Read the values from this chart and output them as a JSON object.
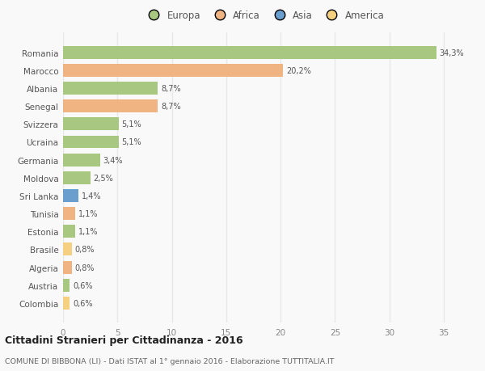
{
  "categories": [
    "Romania",
    "Marocco",
    "Albania",
    "Senegal",
    "Svizzera",
    "Ucraina",
    "Germania",
    "Moldova",
    "Sri Lanka",
    "Tunisia",
    "Estonia",
    "Brasile",
    "Algeria",
    "Austria",
    "Colombia"
  ],
  "values": [
    34.3,
    20.2,
    8.7,
    8.7,
    5.1,
    5.1,
    3.4,
    2.5,
    1.4,
    1.1,
    1.1,
    0.8,
    0.8,
    0.6,
    0.6
  ],
  "labels": [
    "34,3%",
    "20,2%",
    "8,7%",
    "8,7%",
    "5,1%",
    "5,1%",
    "3,4%",
    "2,5%",
    "1,4%",
    "1,1%",
    "1,1%",
    "0,8%",
    "0,8%",
    "0,6%",
    "0,6%"
  ],
  "bar_colors": [
    "#a8c882",
    "#f0b482",
    "#a8c882",
    "#f0b482",
    "#a8c882",
    "#a8c882",
    "#a8c882",
    "#a8c882",
    "#6a9ecf",
    "#f0b482",
    "#a8c882",
    "#f5d080",
    "#f0b482",
    "#a8c882",
    "#f5d080"
  ],
  "legend_labels": [
    "Europa",
    "Africa",
    "Asia",
    "America"
  ],
  "legend_colors": [
    "#a8c882",
    "#f0b482",
    "#6a9ecf",
    "#f5d080"
  ],
  "title": "Cittadini Stranieri per Cittadinanza - 2016",
  "subtitle": "COMUNE DI BIBBONA (LI) - Dati ISTAT al 1° gennaio 2016 - Elaborazione TUTTITALIA.IT",
  "xlim": [
    0,
    37
  ],
  "xticks": [
    0,
    5,
    10,
    15,
    20,
    25,
    30,
    35
  ],
  "background_color": "#f9f9f9",
  "grid_color": "#e8e8e8",
  "bar_height": 0.72
}
